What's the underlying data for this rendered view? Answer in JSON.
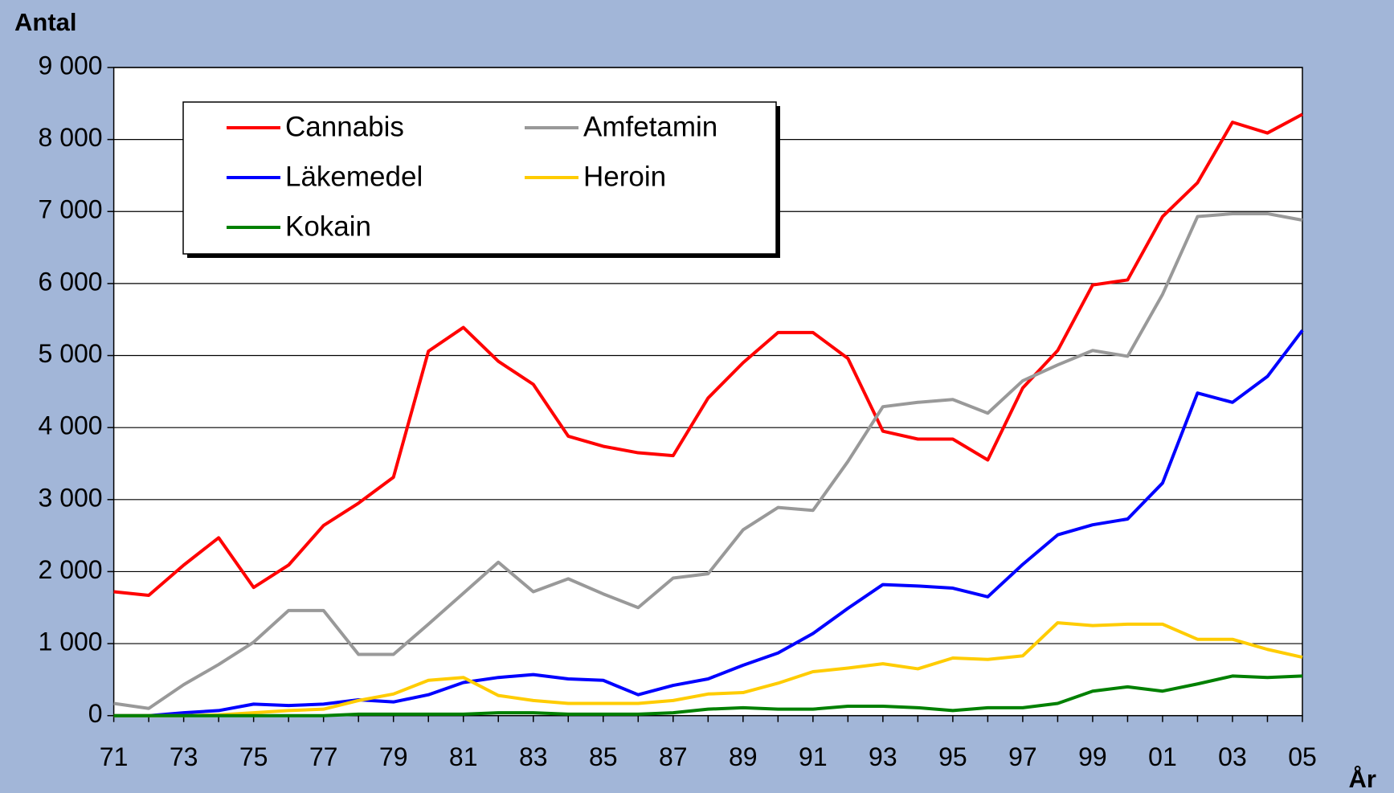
{
  "chart_data": {
    "type": "line",
    "y_label": "Antal",
    "x_label": "År",
    "categories": [
      "71",
      null,
      "73",
      null,
      "75",
      null,
      "77",
      null,
      "79",
      null,
      "81",
      null,
      "83",
      null,
      "85",
      null,
      "87",
      null,
      "89",
      null,
      "91",
      null,
      "93",
      null,
      "95",
      null,
      "97",
      null,
      "99",
      null,
      "01",
      null,
      "03",
      null,
      "05"
    ],
    "ylim": [
      0,
      9000
    ],
    "yticks": [
      0,
      {
        "value": 1000,
        "label": "1 000"
      },
      {
        "value": 2000,
        "label": "2 000"
      },
      {
        "value": 3000,
        "label": "3 000"
      },
      {
        "value": 4000,
        "label": "4 000"
      },
      {
        "value": 5000,
        "label": "5 000"
      },
      {
        "value": 6000,
        "label": "6 000"
      },
      {
        "value": 7000,
        "label": "7 000"
      },
      {
        "value": 8000,
        "label": "8 000"
      },
      {
        "value": 9000,
        "label": "9 000"
      }
    ],
    "grid": true,
    "legend_position": "upper left",
    "series": [
      {
        "name": "Cannabis",
        "color": "#ff0000",
        "values": [
          1720,
          1670,
          2090,
          2470,
          1780,
          2090,
          2640,
          2950,
          3310,
          5060,
          5390,
          4920,
          4600,
          3880,
          3740,
          3650,
          3610,
          4410,
          4900,
          5320,
          5320,
          4960,
          3950,
          3840,
          3840,
          3550,
          4550,
          5070,
          5980,
          6050,
          6930,
          7400,
          8240,
          8090,
          8350
        ]
      },
      {
        "name": "Amfetamin",
        "color": "#999999",
        "values": [
          170,
          100,
          430,
          710,
          1020,
          1460,
          1460,
          850,
          850,
          1270,
          1700,
          2130,
          1720,
          1900,
          1690,
          1500,
          1910,
          1970,
          2580,
          2890,
          2850,
          3530,
          4290,
          4350,
          4390,
          4200,
          4650,
          4870,
          5070,
          4990,
          5850,
          6930,
          6970,
          6970,
          6880
        ]
      },
      {
        "name": "Läkemedel",
        "color": "#0000ff",
        "values": [
          0,
          0,
          40,
          70,
          160,
          140,
          160,
          220,
          190,
          290,
          460,
          530,
          570,
          510,
          490,
          290,
          420,
          510,
          700,
          870,
          1140,
          1490,
          1820,
          1800,
          1770,
          1650,
          2100,
          2510,
          2650,
          2730,
          3230,
          4480,
          4350,
          4710,
          5350
        ]
      },
      {
        "name": "Heroin",
        "color": "#ffcc00",
        "values": [
          0,
          0,
          0,
          10,
          40,
          70,
          90,
          210,
          300,
          490,
          530,
          280,
          210,
          170,
          170,
          170,
          210,
          300,
          320,
          450,
          610,
          660,
          720,
          650,
          800,
          780,
          830,
          1290,
          1250,
          1270,
          1270,
          1060,
          1060,
          920,
          810
        ]
      },
      {
        "name": "Kokain",
        "color": "#008000",
        "values": [
          0,
          0,
          0,
          0,
          0,
          0,
          0,
          20,
          20,
          20,
          20,
          40,
          40,
          20,
          20,
          20,
          40,
          90,
          110,
          90,
          90,
          130,
          130,
          110,
          70,
          110,
          110,
          170,
          340,
          400,
          340,
          440,
          550,
          530,
          550
        ]
      }
    ]
  }
}
